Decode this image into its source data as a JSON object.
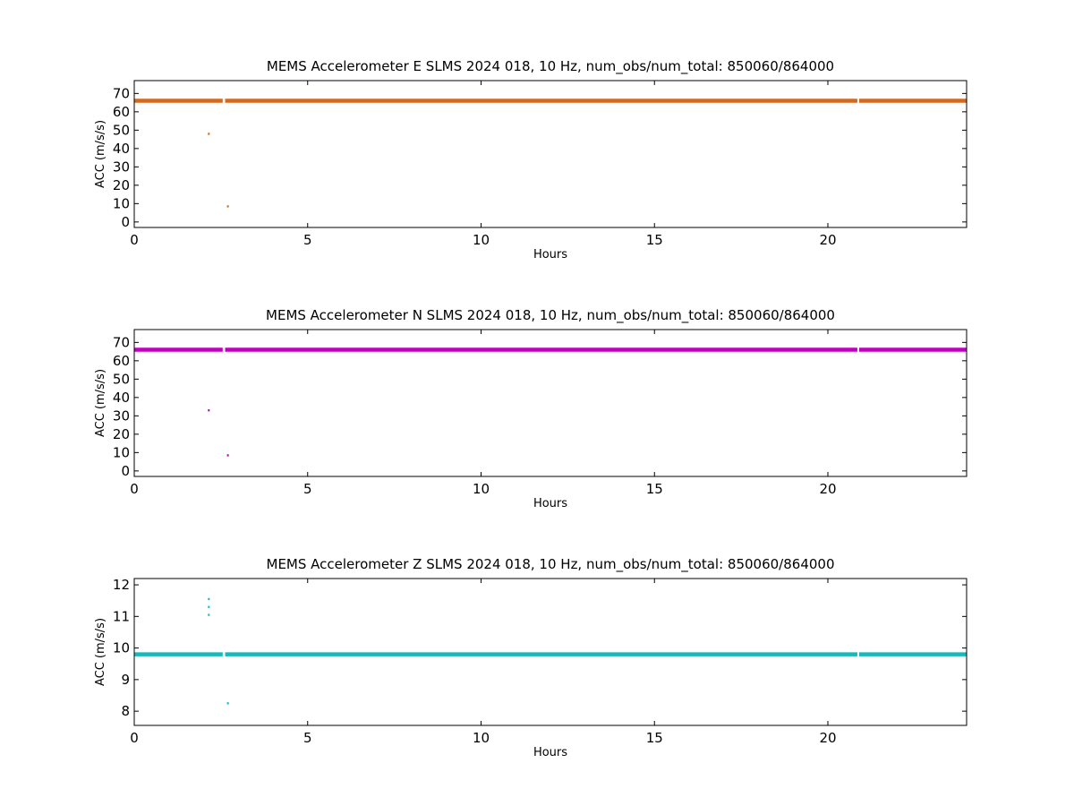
{
  "chart_data": [
    {
      "type": "scatter",
      "title": "MEMS Accelerometer E SLMS 2024 018, 10 Hz, num_obs/num_total: 850060/864000",
      "xlabel": "Hours",
      "ylabel": "ACC (m/s/s)",
      "xlim": [
        0,
        24
      ],
      "ylim": [
        -3,
        77
      ],
      "xticks": [
        0,
        5,
        10,
        15,
        20
      ],
      "yticks": [
        0,
        10,
        20,
        30,
        40,
        50,
        60,
        70
      ],
      "color": "#d2691e",
      "series": [
        {
          "baseline": {
            "value": 66,
            "segments": [
              [
                0,
                2.55
              ],
              [
                2.62,
                20.85
              ],
              [
                20.9,
                24
              ]
            ]
          },
          "points": [
            {
              "x": 2.15,
              "y": 48
            },
            {
              "x": 2.7,
              "y": 8.5
            }
          ]
        }
      ]
    },
    {
      "type": "scatter",
      "title": "MEMS Accelerometer N SLMS 2024 018, 10 Hz, num_obs/num_total: 850060/864000",
      "xlabel": "Hours",
      "ylabel": "ACC (m/s/s)",
      "xlim": [
        0,
        24
      ],
      "ylim": [
        -3,
        77
      ],
      "xticks": [
        0,
        5,
        10,
        15,
        20
      ],
      "yticks": [
        0,
        10,
        20,
        30,
        40,
        50,
        60,
        70
      ],
      "color": "#bf00bf",
      "series": [
        {
          "baseline": {
            "value": 66,
            "segments": [
              [
                0,
                2.55
              ],
              [
                2.62,
                20.85
              ],
              [
                20.9,
                24
              ]
            ]
          },
          "points": [
            {
              "x": 2.15,
              "y": 33
            },
            {
              "x": 2.7,
              "y": 8.5
            }
          ]
        }
      ]
    },
    {
      "type": "scatter",
      "title": "MEMS Accelerometer Z SLMS 2024 018, 10 Hz, num_obs/num_total: 850060/864000",
      "xlabel": "Hours",
      "ylabel": "ACC (m/s/s)",
      "xlim": [
        0,
        24
      ],
      "ylim": [
        7.55,
        12.2
      ],
      "xticks": [
        0,
        5,
        10,
        15,
        20
      ],
      "yticks": [
        8,
        9,
        10,
        11,
        12
      ],
      "color": "#17b8b8",
      "series": [
        {
          "baseline": {
            "value": 9.8,
            "segments": [
              [
                0,
                2.55
              ],
              [
                2.62,
                20.85
              ],
              [
                20.9,
                24
              ]
            ]
          },
          "points": [
            {
              "x": 2.15,
              "y": 11.55
            },
            {
              "x": 2.15,
              "y": 11.3
            },
            {
              "x": 2.15,
              "y": 11.05
            },
            {
              "x": 2.7,
              "y": 8.25
            }
          ]
        }
      ]
    }
  ]
}
